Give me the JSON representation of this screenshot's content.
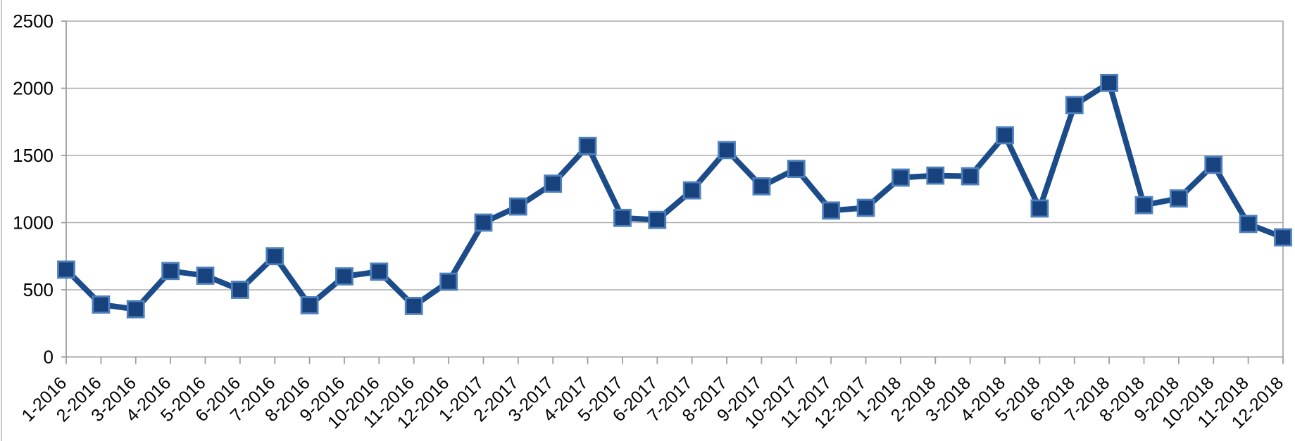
{
  "chart_data": {
    "type": "line",
    "title": "",
    "xlabel": "",
    "ylabel": "",
    "categories": [
      "1-2016",
      "2-2016",
      "3-2016",
      "4-2016",
      "5-2016",
      "6-2016",
      "7-2016",
      "8-2016",
      "9-2016",
      "10-2016",
      "11-2016",
      "12-2016",
      "1-2017",
      "2-2017",
      "3-2017",
      "4-2017",
      "5-2017",
      "6-2017",
      "7-2017",
      "8-2017",
      "9-2017",
      "10-2017",
      "11-2017",
      "12-2017",
      "1-2018",
      "2-2018",
      "3-2018",
      "4-2018",
      "5-2018",
      "6-2018",
      "7-2018",
      "8-2018",
      "9-2018",
      "10-2018",
      "11-2018",
      "12-2018"
    ],
    "series": [
      {
        "values": [
          650,
          390,
          355,
          640,
          605,
          500,
          750,
          385,
          600,
          635,
          380,
          560,
          1000,
          1120,
          1290,
          1570,
          1035,
          1020,
          1240,
          1540,
          1270,
          1400,
          1090,
          1110,
          1335,
          1350,
          1345,
          1650,
          1105,
          1875,
          2040,
          1130,
          1180,
          1430,
          990,
          890
        ]
      }
    ],
    "ylim": [
      0,
      2500
    ],
    "ytick_values": [
      0,
      500,
      1000,
      1500,
      2000,
      2500
    ],
    "ytick_labels": [
      "0",
      "500",
      "1000",
      "1500",
      "2000",
      "2500"
    ],
    "grid": true,
    "legend": false,
    "x_label_rotation": -45,
    "marker": "square",
    "colors": {
      "line": "#1B4B88",
      "marker_fill": "#17427E",
      "marker_border": "#4E80BC",
      "gridline": "#ACACAC",
      "axis": "#9D9D9D",
      "label": "#000000",
      "chart_border": "#B7B7B7",
      "background": "#FFFFFF"
    }
  }
}
